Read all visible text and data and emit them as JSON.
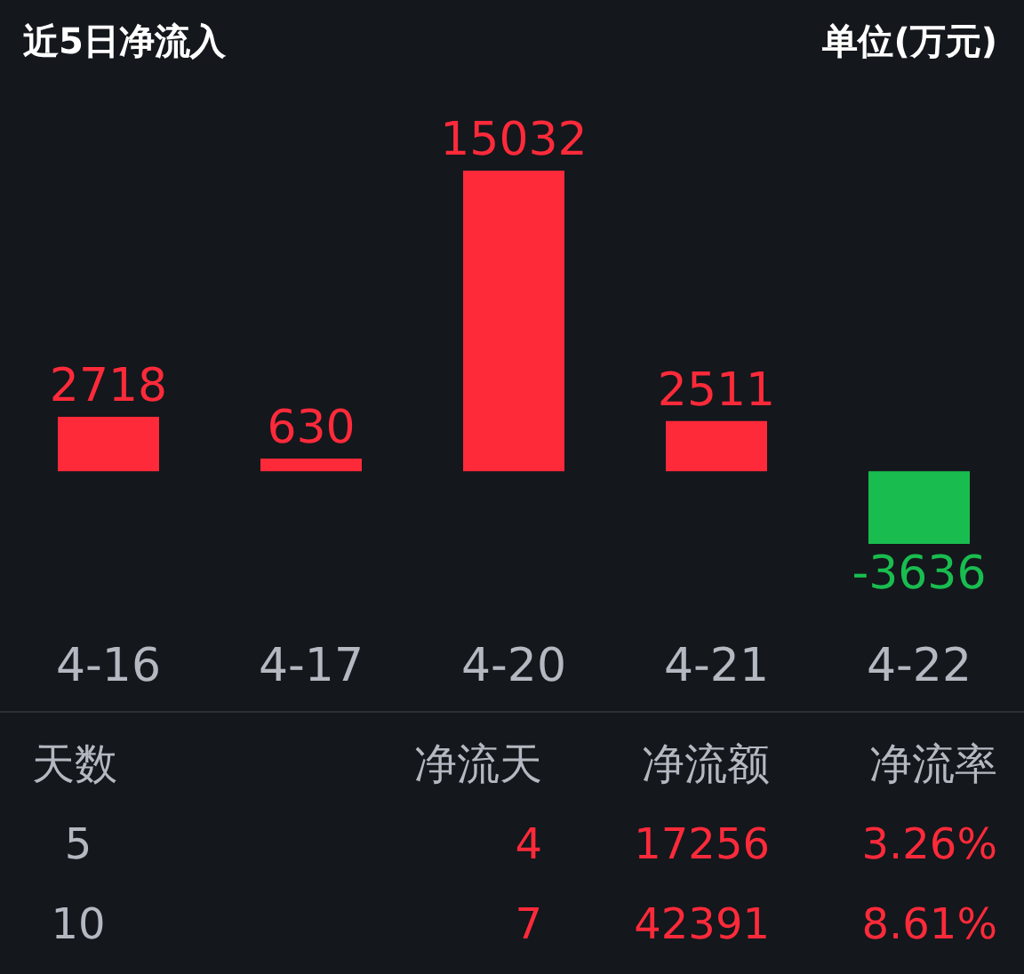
{
  "chart_data": {
    "type": "bar",
    "title": "近5日净流入",
    "ylabel": "单位(万元)",
    "categories": [
      "4-16",
      "4-17",
      "4-20",
      "4-21",
      "4-22"
    ],
    "values": [
      2718,
      630,
      15032,
      2511,
      -3636
    ],
    "colors": [
      "#fe2a3a",
      "#fe2a3a",
      "#fe2a3a",
      "#fe2a3a",
      "#19bd4f"
    ],
    "data_labels": true,
    "annotations": [
      "天数",
      "净流天",
      "净流额",
      "净流率",
      "5",
      "4",
      "17256",
      "3.26%",
      "10",
      "7",
      "42391",
      "8.61%"
    ]
  }
}
